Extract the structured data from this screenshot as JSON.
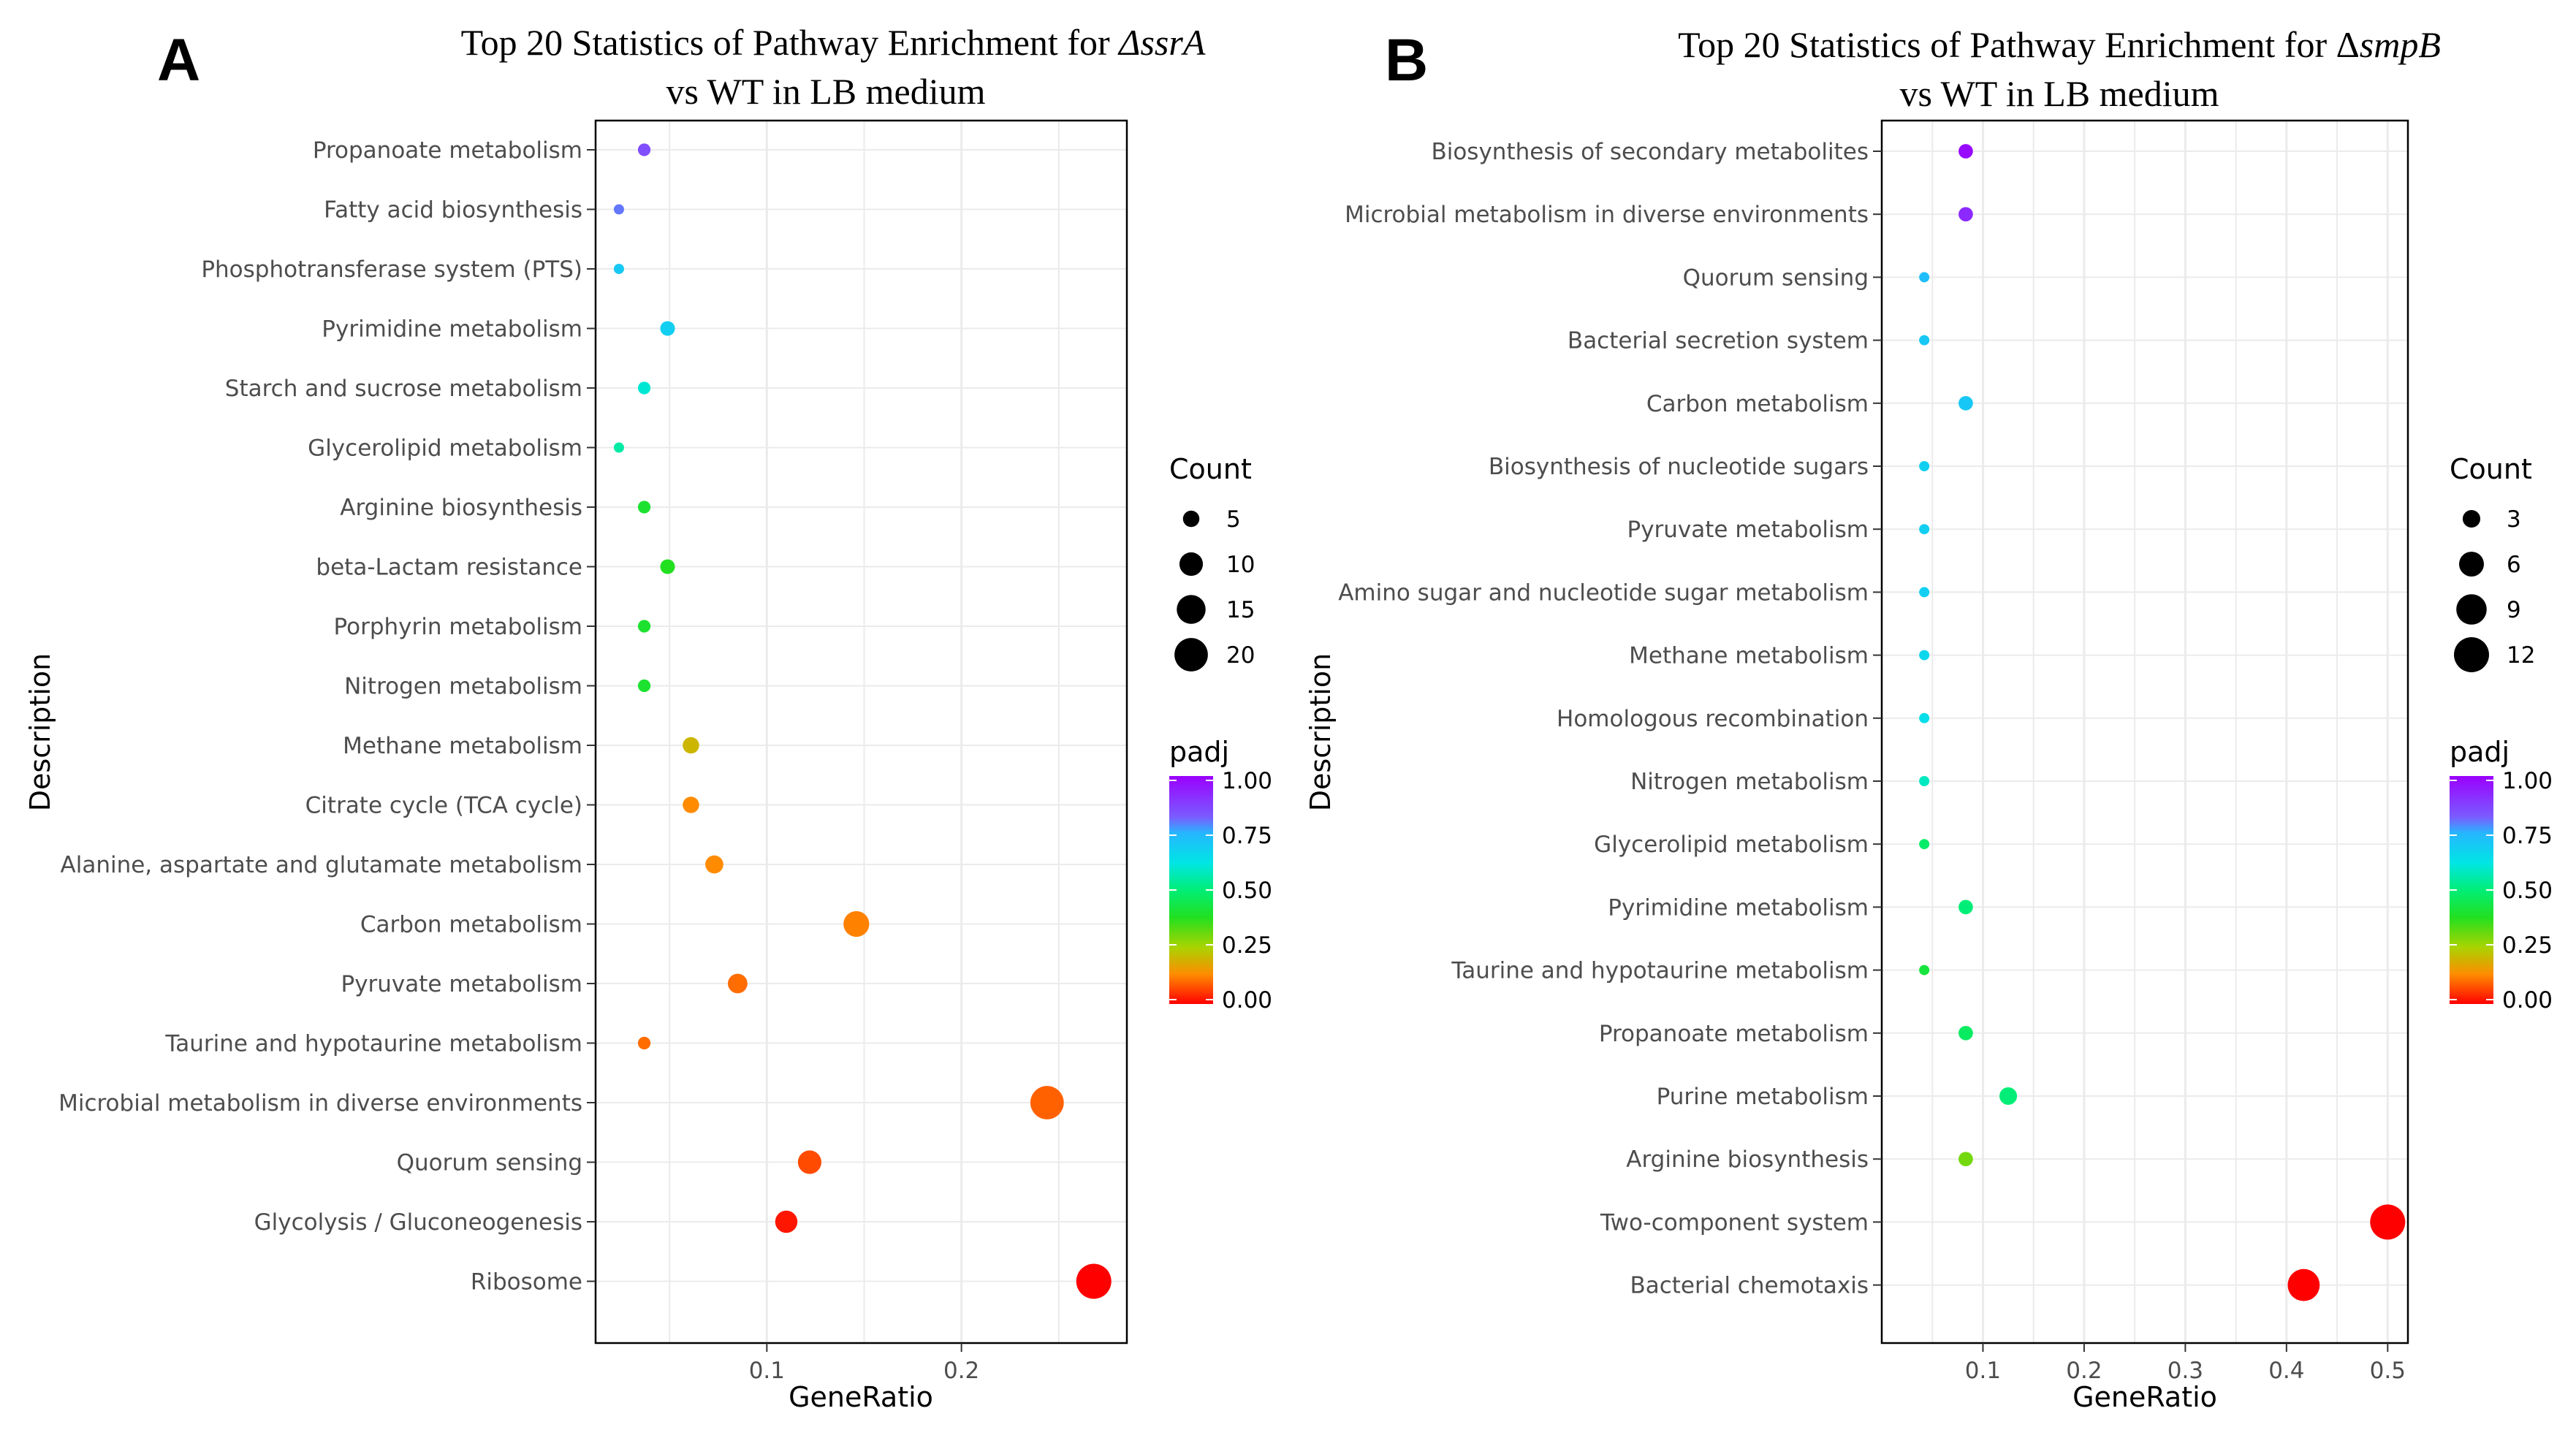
{
  "chart_data": [
    {
      "panel": "A",
      "type": "scatter",
      "title_line1_prefix": "Top 20 Statistics of Pathway Enrichment for ",
      "title_italic": "ΔssrA",
      "title_line2": "vs WT in LB medium",
      "xlabel": "GeneRatio",
      "ylabel": "Description",
      "xlim": [
        0.012,
        0.285
      ],
      "xticks": [
        0.1,
        0.2
      ],
      "xtick_labels": [
        "0.1",
        "0.2"
      ],
      "count_legend": {
        "title": "Count",
        "values": [
          5,
          10,
          15,
          20
        ],
        "labels": [
          "5",
          "10",
          "15",
          "20"
        ]
      },
      "padj_legend": {
        "title": "padj",
        "labels": [
          "1.00",
          "0.75",
          "0.50",
          "0.25",
          "0.00"
        ]
      },
      "points": [
        {
          "label": "Propanoate metabolism",
          "gene_ratio": 0.037,
          "count": 3,
          "padj": 0.85
        },
        {
          "label": "Fatty acid biosynthesis",
          "gene_ratio": 0.024,
          "count": 2,
          "padj": 0.8
        },
        {
          "label": "Phosphotransferase system (PTS)",
          "gene_ratio": 0.024,
          "count": 2,
          "padj": 0.7
        },
        {
          "label": "Pyrimidine metabolism",
          "gene_ratio": 0.049,
          "count": 4,
          "padj": 0.68
        },
        {
          "label": "Starch and sucrose metabolism",
          "gene_ratio": 0.037,
          "count": 3,
          "padj": 0.6
        },
        {
          "label": "Glycerolipid metabolism",
          "gene_ratio": 0.024,
          "count": 2,
          "padj": 0.55
        },
        {
          "label": "Arginine biosynthesis",
          "gene_ratio": 0.037,
          "count": 3,
          "padj": 0.4
        },
        {
          "label": "beta-Lactam resistance",
          "gene_ratio": 0.049,
          "count": 4,
          "padj": 0.38
        },
        {
          "label": "Porphyrin metabolism",
          "gene_ratio": 0.037,
          "count": 3,
          "padj": 0.4
        },
        {
          "label": "Nitrogen metabolism",
          "gene_ratio": 0.037,
          "count": 3,
          "padj": 0.4
        },
        {
          "label": "Methane metabolism",
          "gene_ratio": 0.061,
          "count": 5,
          "padj": 0.2
        },
        {
          "label": "Citrate cycle (TCA cycle)",
          "gene_ratio": 0.061,
          "count": 5,
          "padj": 0.13
        },
        {
          "label": "Alanine, aspartate and glutamate metabolism",
          "gene_ratio": 0.073,
          "count": 6,
          "padj": 0.13
        },
        {
          "label": "Carbon metabolism",
          "gene_ratio": 0.146,
          "count": 12,
          "padj": 0.12
        },
        {
          "label": "Pyruvate metabolism",
          "gene_ratio": 0.085,
          "count": 7,
          "padj": 0.1
        },
        {
          "label": "Taurine and hypotaurine metabolism",
          "gene_ratio": 0.037,
          "count": 3,
          "padj": 0.1
        },
        {
          "label": "Microbial metabolism in diverse environments",
          "gene_ratio": 0.244,
          "count": 20,
          "padj": 0.09
        },
        {
          "label": "Quorum sensing",
          "gene_ratio": 0.122,
          "count": 10,
          "padj": 0.07
        },
        {
          "label": "Glycolysis / Gluconeogenesis",
          "gene_ratio": 0.11,
          "count": 9,
          "padj": 0.02
        },
        {
          "label": "Ribosome",
          "gene_ratio": 0.268,
          "count": 22,
          "padj": 0.0
        }
      ]
    },
    {
      "panel": "B",
      "type": "scatter",
      "title_line1_prefix": "Top 20 Statistics of Pathway Enrichment for Δ",
      "title_italic": "smpB",
      "title_line2": "vs WT in LB medium",
      "xlabel": "GeneRatio",
      "ylabel": "Description",
      "xlim": [
        0.0,
        0.52
      ],
      "xticks": [
        0.1,
        0.2,
        0.3,
        0.4,
        0.5
      ],
      "xtick_labels": [
        "0.1",
        "0.2",
        "0.3",
        "0.4",
        "0.5"
      ],
      "count_legend": {
        "title": "Count",
        "values": [
          3,
          6,
          9,
          12
        ],
        "labels": [
          "3",
          "6",
          "9",
          "12"
        ]
      },
      "padj_legend": {
        "title": "padj",
        "labels": [
          "1.00",
          "0.75",
          "0.50",
          "0.25",
          "0.00"
        ]
      },
      "points": [
        {
          "label": "Biosynthesis of secondary metabolites",
          "gene_ratio": 0.083,
          "count": 2,
          "padj": 0.98
        },
        {
          "label": "Microbial metabolism in diverse environments",
          "gene_ratio": 0.083,
          "count": 2,
          "padj": 0.92
        },
        {
          "label": "Quorum sensing",
          "gene_ratio": 0.042,
          "count": 1,
          "padj": 0.73
        },
        {
          "label": "Bacterial secretion system",
          "gene_ratio": 0.042,
          "count": 1,
          "padj": 0.7
        },
        {
          "label": "Carbon metabolism",
          "gene_ratio": 0.083,
          "count": 2,
          "padj": 0.7
        },
        {
          "label": "Biosynthesis of nucleotide sugars",
          "gene_ratio": 0.042,
          "count": 1,
          "padj": 0.68
        },
        {
          "label": "Pyruvate metabolism",
          "gene_ratio": 0.042,
          "count": 1,
          "padj": 0.68
        },
        {
          "label": "Amino sugar and nucleotide sugar metabolism",
          "gene_ratio": 0.042,
          "count": 1,
          "padj": 0.68
        },
        {
          "label": "Methane metabolism",
          "gene_ratio": 0.042,
          "count": 1,
          "padj": 0.66
        },
        {
          "label": "Homologous recombination",
          "gene_ratio": 0.042,
          "count": 1,
          "padj": 0.64
        },
        {
          "label": "Nitrogen metabolism",
          "gene_ratio": 0.042,
          "count": 1,
          "padj": 0.58
        },
        {
          "label": "Glycerolipid metabolism",
          "gene_ratio": 0.042,
          "count": 1,
          "padj": 0.48
        },
        {
          "label": "Pyrimidine metabolism",
          "gene_ratio": 0.083,
          "count": 2,
          "padj": 0.5
        },
        {
          "label": "Taurine and hypotaurine metabolism",
          "gene_ratio": 0.042,
          "count": 1,
          "padj": 0.42
        },
        {
          "label": "Propanoate metabolism",
          "gene_ratio": 0.083,
          "count": 2,
          "padj": 0.47
        },
        {
          "label": "Purine metabolism",
          "gene_ratio": 0.125,
          "count": 3,
          "padj": 0.5
        },
        {
          "label": "Arginine biosynthesis",
          "gene_ratio": 0.083,
          "count": 2,
          "padj": 0.3
        },
        {
          "label": "Two-component system",
          "gene_ratio": 0.5,
          "count": 12,
          "padj": 0.0
        },
        {
          "label": "Bacterial chemotaxis",
          "gene_ratio": 0.417,
          "count": 10,
          "padj": 0.0
        }
      ]
    }
  ]
}
